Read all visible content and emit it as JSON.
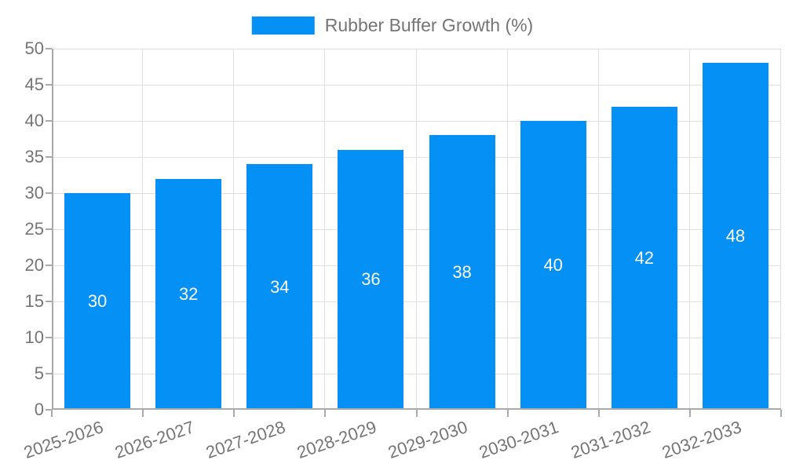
{
  "legend": {
    "label": "Rubber Buffer Growth (%)"
  },
  "chart_data": {
    "type": "bar",
    "title": "",
    "xlabel": "",
    "ylabel": "",
    "categories": [
      "2025-2026",
      "2026-2027",
      "2027-2028",
      "2028-2029",
      "2029-2030",
      "2030-2031",
      "2031-2032",
      "2032-2033"
    ],
    "series": [
      {
        "name": "Rubber Buffer Growth (%)",
        "values": [
          30,
          32,
          34,
          36,
          38,
          40,
          42,
          48
        ]
      }
    ],
    "value_labels": [
      "30",
      "32",
      "34",
      "36",
      "38",
      "40",
      "42",
      "48"
    ],
    "ylim": [
      0,
      50
    ],
    "ytick_step": 5,
    "ytick_labels": [
      "0",
      "5",
      "10",
      "15",
      "20",
      "25",
      "30",
      "35",
      "40",
      "45",
      "50"
    ],
    "grid": true,
    "legend_position": "top-center",
    "x_label_rotation_deg": -19,
    "colors": {
      "bar": "#0590f5",
      "bar_value_text": "#ffffff",
      "axis_text": "#757575",
      "legend_text": "#757575",
      "grid_line": "#e0e0e0",
      "axis_line": "#aaaaaa",
      "background": "#ffffff"
    }
  }
}
